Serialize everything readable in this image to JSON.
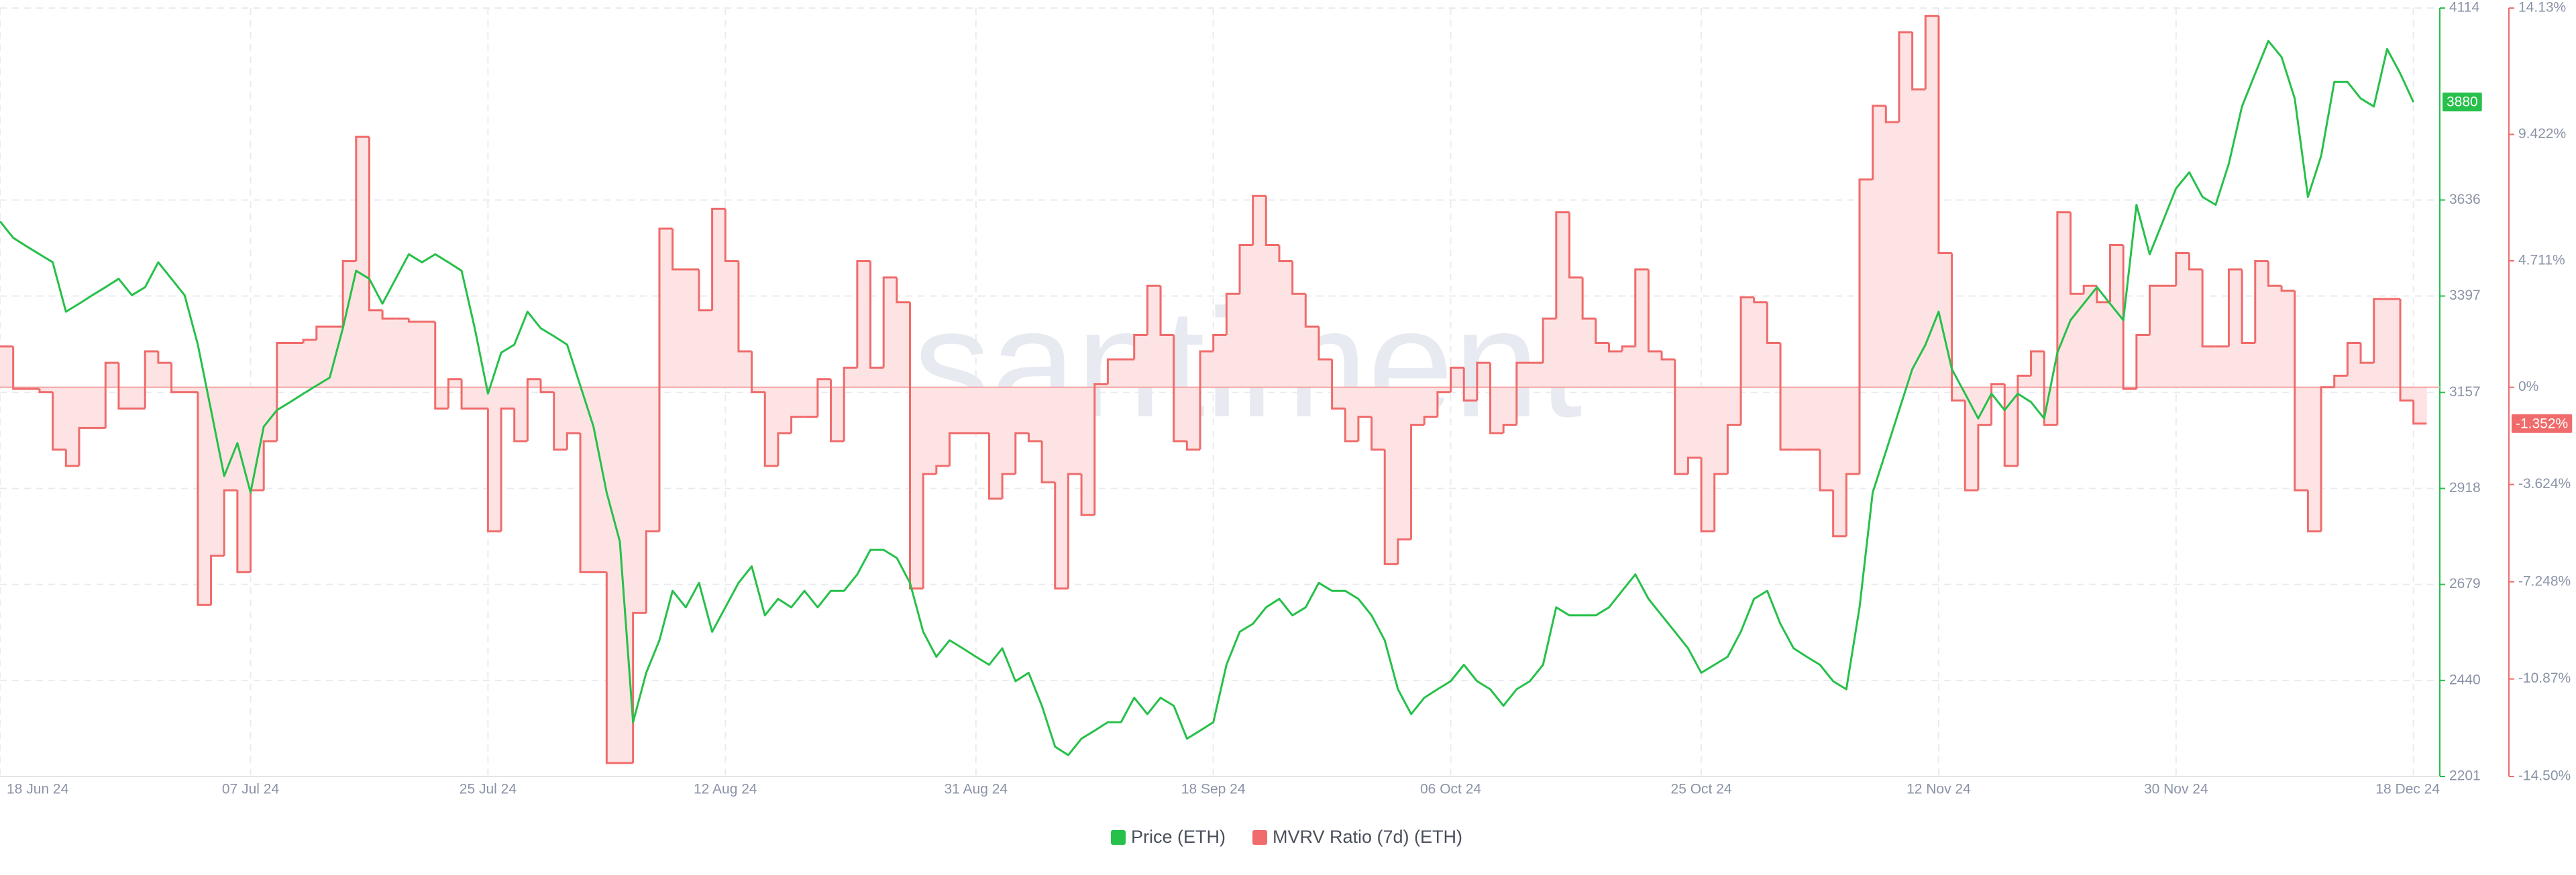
{
  "chart_data": {
    "type": "line",
    "watermark": "·santiment·",
    "x": [
      "2024-06-18",
      "2024-06-19",
      "2024-06-20",
      "2024-06-21",
      "2024-06-22",
      "2024-06-23",
      "2024-06-24",
      "2024-06-25",
      "2024-06-26",
      "2024-06-27",
      "2024-06-28",
      "2024-06-29",
      "2024-06-30",
      "2024-07-01",
      "2024-07-02",
      "2024-07-03",
      "2024-07-04",
      "2024-07-05",
      "2024-07-06",
      "2024-07-07",
      "2024-07-08",
      "2024-07-09",
      "2024-07-10",
      "2024-07-11",
      "2024-07-12",
      "2024-07-13",
      "2024-07-14",
      "2024-07-15",
      "2024-07-16",
      "2024-07-17",
      "2024-07-18",
      "2024-07-19",
      "2024-07-20",
      "2024-07-21",
      "2024-07-22",
      "2024-07-23",
      "2024-07-24",
      "2024-07-25",
      "2024-07-26",
      "2024-07-27",
      "2024-07-28",
      "2024-07-29",
      "2024-07-30",
      "2024-07-31",
      "2024-08-01",
      "2024-08-02",
      "2024-08-03",
      "2024-08-04",
      "2024-08-05",
      "2024-08-06",
      "2024-08-07",
      "2024-08-08",
      "2024-08-09",
      "2024-08-10",
      "2024-08-11",
      "2024-08-12",
      "2024-08-13",
      "2024-08-14",
      "2024-08-15",
      "2024-08-16",
      "2024-08-17",
      "2024-08-18",
      "2024-08-19",
      "2024-08-20",
      "2024-08-21",
      "2024-08-22",
      "2024-08-23",
      "2024-08-24",
      "2024-08-25",
      "2024-08-26",
      "2024-08-27",
      "2024-08-28",
      "2024-08-29",
      "2024-08-30",
      "2024-08-31",
      "2024-09-01",
      "2024-09-02",
      "2024-09-03",
      "2024-09-04",
      "2024-09-05",
      "2024-09-06",
      "2024-09-07",
      "2024-09-08",
      "2024-09-09",
      "2024-09-10",
      "2024-09-11",
      "2024-09-12",
      "2024-09-13",
      "2024-09-14",
      "2024-09-15",
      "2024-09-16",
      "2024-09-17",
      "2024-09-18",
      "2024-09-19",
      "2024-09-20",
      "2024-09-21",
      "2024-09-22",
      "2024-09-23",
      "2024-09-24",
      "2024-09-25",
      "2024-09-26",
      "2024-09-27",
      "2024-09-28",
      "2024-09-29",
      "2024-09-30",
      "2024-10-01",
      "2024-10-02",
      "2024-10-03",
      "2024-10-04",
      "2024-10-05",
      "2024-10-06",
      "2024-10-07",
      "2024-10-08",
      "2024-10-09",
      "2024-10-10",
      "2024-10-11",
      "2024-10-12",
      "2024-10-13",
      "2024-10-14",
      "2024-10-15",
      "2024-10-16",
      "2024-10-17",
      "2024-10-18",
      "2024-10-19",
      "2024-10-20",
      "2024-10-21",
      "2024-10-22",
      "2024-10-23",
      "2024-10-24",
      "2024-10-25",
      "2024-10-26",
      "2024-10-27",
      "2024-10-28",
      "2024-10-29",
      "2024-10-30",
      "2024-10-31",
      "2024-11-01",
      "2024-11-02",
      "2024-11-03",
      "2024-11-04",
      "2024-11-05",
      "2024-11-06",
      "2024-11-07",
      "2024-11-08",
      "2024-11-09",
      "2024-11-10",
      "2024-11-11",
      "2024-11-12",
      "2024-11-13",
      "2024-11-14",
      "2024-11-15",
      "2024-11-16",
      "2024-11-17",
      "2024-11-18",
      "2024-11-19",
      "2024-11-20",
      "2024-11-21",
      "2024-11-22",
      "2024-11-23",
      "2024-11-24",
      "2024-11-25",
      "2024-11-26",
      "2024-11-27",
      "2024-11-28",
      "2024-11-29",
      "2024-11-30",
      "2024-12-01",
      "2024-12-02",
      "2024-12-03",
      "2024-12-04",
      "2024-12-05",
      "2024-12-06",
      "2024-12-07",
      "2024-12-08",
      "2024-12-09",
      "2024-12-10",
      "2024-12-11",
      "2024-12-12",
      "2024-12-13",
      "2024-12-14",
      "2024-12-15",
      "2024-12-16",
      "2024-12-17",
      "2024-12-18"
    ],
    "xlim": [
      "2024-06-18",
      "2024-12-20"
    ],
    "xticks": [
      {
        "value": "2024-06-18",
        "label": "18 Jun 24"
      },
      {
        "value": "2024-07-07",
        "label": "07 Jul 24"
      },
      {
        "value": "2024-07-25",
        "label": "25 Jul 24"
      },
      {
        "value": "2024-08-12",
        "label": "12 Aug 24"
      },
      {
        "value": "2024-08-31",
        "label": "31 Aug 24"
      },
      {
        "value": "2024-09-18",
        "label": "18 Sep 24"
      },
      {
        "value": "2024-10-06",
        "label": "06 Oct 24"
      },
      {
        "value": "2024-10-25",
        "label": "25 Oct 24"
      },
      {
        "value": "2024-11-12",
        "label": "12 Nov 24"
      },
      {
        "value": "2024-11-30",
        "label": "30 Nov 24"
      },
      {
        "value": "2024-12-18",
        "label": "18 Dec 24"
      }
    ],
    "ylim": [
      2201,
      4114
    ],
    "yticks": [
      2201,
      2440,
      2679,
      2918,
      3157,
      3397,
      3636,
      4114
    ],
    "y2lim": [
      -14.5,
      14.13
    ],
    "y2ticks": [
      {
        "value": 14.13,
        "label": "14.13%"
      },
      {
        "value": 9.422,
        "label": "9.422%"
      },
      {
        "value": 4.711,
        "label": "4.711%"
      },
      {
        "value": 0,
        "label": "0%"
      },
      {
        "value": -3.624,
        "label": "-3.624%"
      },
      {
        "value": -7.248,
        "label": "-7.248%"
      },
      {
        "value": -10.87,
        "label": "-10.87%"
      },
      {
        "value": -14.5,
        "label": "-14.50%"
      }
    ],
    "grid": true,
    "series": [
      {
        "name": "Price (ETH)",
        "color": "#26c04a",
        "current": 3880,
        "values": [
          3583,
          3542,
          3521,
          3501,
          3481,
          3358,
          3378,
          3399,
          3419,
          3440,
          3399,
          3419,
          3481,
          3440,
          3399,
          3276,
          3113,
          2949,
          3031,
          2908,
          3072,
          3113,
          3133,
          3154,
          3174,
          3194,
          3317,
          3460,
          3440,
          3378,
          3440,
          3501,
          3481,
          3501,
          3481,
          3460,
          3317,
          3154,
          3256,
          3276,
          3358,
          3317,
          3297,
          3276,
          3174,
          3072,
          2908,
          2786,
          2336,
          2459,
          2540,
          2663,
          2622,
          2683,
          2561,
          2622,
          2683,
          2724,
          2602,
          2643,
          2622,
          2663,
          2622,
          2663,
          2663,
          2704,
          2765,
          2765,
          2745,
          2683,
          2561,
          2499,
          2540,
          2520,
          2499,
          2479,
          2520,
          2438,
          2459,
          2377,
          2275,
          2254,
          2295,
          2315,
          2336,
          2336,
          2397,
          2356,
          2397,
          2377,
          2295,
          2315,
          2336,
          2479,
          2561,
          2581,
          2622,
          2643,
          2602,
          2622,
          2683,
          2663,
          2663,
          2643,
          2602,
          2540,
          2418,
          2356,
          2397,
          2418,
          2438,
          2479,
          2438,
          2418,
          2377,
          2418,
          2438,
          2479,
          2622,
          2602,
          2602,
          2602,
          2622,
          2663,
          2704,
          2643,
          2602,
          2561,
          2520,
          2459,
          2479,
          2499,
          2561,
          2643,
          2663,
          2581,
          2520,
          2499,
          2479,
          2438,
          2418,
          2622,
          2908,
          3010,
          3113,
          3215,
          3276,
          3358,
          3215,
          3154,
          3092,
          3154,
          3113,
          3154,
          3133,
          3092,
          3256,
          3337,
          3378,
          3419,
          3378,
          3337,
          3624,
          3501,
          3583,
          3665,
          3705,
          3644,
          3624,
          3726,
          3869,
          3951,
          4032,
          3992,
          3889,
          3644,
          3746,
          3930,
          3930,
          3889,
          3869,
          4012,
          3951,
          3880
        ]
      },
      {
        "name": "MVRV Ratio (7d) (ETH)",
        "color": "#f06b6b",
        "fill": "#fde3e3",
        "axis": "y2",
        "step": true,
        "current": {
          "value": -1.352,
          "label": "-1.352%"
        },
        "values": [
          1.52,
          -0.06,
          -0.06,
          -0.18,
          -2.32,
          -2.93,
          -1.52,
          -1.52,
          0.91,
          -0.79,
          -0.79,
          1.34,
          0.91,
          -0.18,
          -0.18,
          -8.11,
          -6.28,
          -3.84,
          -6.89,
          -3.84,
          -2.01,
          1.65,
          1.65,
          1.77,
          2.26,
          2.26,
          4.7,
          9.33,
          2.87,
          2.56,
          2.56,
          2.44,
          2.44,
          -0.79,
          0.3,
          -0.79,
          -0.79,
          -5.37,
          -0.79,
          -2.01,
          0.3,
          -0.18,
          -2.32,
          -1.71,
          -6.89,
          -6.89,
          -14,
          -14,
          -8.41,
          -5.37,
          5.91,
          4.39,
          4.39,
          2.87,
          6.65,
          4.7,
          1.34,
          -0.18,
          -2.93,
          -1.71,
          -1.1,
          -1.1,
          0.3,
          -2.01,
          0.73,
          4.7,
          0.73,
          4.09,
          3.17,
          -7.5,
          -3.23,
          -2.93,
          -1.71,
          -1.71,
          -1.71,
          -4.15,
          -3.23,
          -1.71,
          -2.01,
          -3.54,
          -7.5,
          -3.23,
          -4.76,
          0.12,
          1.04,
          1.04,
          1.95,
          3.78,
          1.95,
          -2.01,
          -2.32,
          1.34,
          1.95,
          3.48,
          5.3,
          7.13,
          5.3,
          4.7,
          3.48,
          2.26,
          1.04,
          -0.79,
          -2.01,
          -1.1,
          -2.32,
          -6.59,
          -5.67,
          -1.4,
          -1.1,
          -0.18,
          0.73,
          -0.49,
          0.91,
          -1.71,
          -1.4,
          0.91,
          0.91,
          2.56,
          6.52,
          4.09,
          2.56,
          1.65,
          1.34,
          1.52,
          4.39,
          1.34,
          1.04,
          -3.23,
          -2.62,
          -5.37,
          -3.23,
          -1.4,
          3.35,
          3.17,
          1.65,
          -2.32,
          -2.32,
          -2.32,
          -3.84,
          -5.55,
          -3.23,
          7.74,
          10.49,
          9.88,
          13.23,
          11.1,
          13.84,
          5,
          -0.49,
          -3.84,
          -1.4,
          0.12,
          -2.93,
          0.43,
          1.34,
          -1.4,
          6.52,
          3.48,
          3.78,
          3.17,
          5.3,
          -0.06,
          1.95,
          3.78,
          3.78,
          5,
          4.39,
          1.52,
          1.52,
          4.39,
          1.65,
          4.7,
          3.78,
          3.6,
          -3.84,
          -5.37,
          0,
          0.43,
          1.65,
          0.91,
          3.29,
          3.29,
          -0.49,
          -1.352
        ]
      }
    ]
  }
}
